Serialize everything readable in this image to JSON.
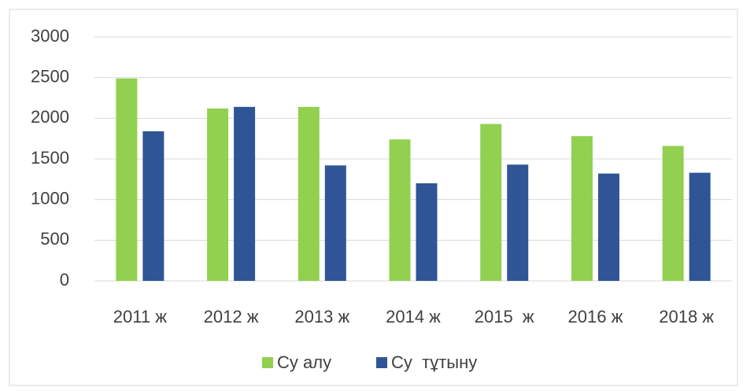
{
  "chart_data": {
    "type": "bar",
    "categories": [
      "2011 ж",
      "2012 ж",
      "2013 ж",
      "2014 ж",
      "2015  ж",
      "2016 ж",
      "2018 ж"
    ],
    "series": [
      {
        "name": "Су алу",
        "color": "#92d050",
        "values": [
          2490,
          2120,
          2140,
          1740,
          1930,
          1780,
          1660
        ]
      },
      {
        "name": "Су  тұтыну",
        "color": "#2f5597",
        "values": [
          1840,
          2140,
          1420,
          1200,
          1430,
          1320,
          1330
        ]
      }
    ],
    "ylim": [
      0,
      3000
    ],
    "yticks": [
      0,
      500,
      1000,
      1500,
      2000,
      2500,
      3000
    ],
    "grid": true,
    "legend": "bottom"
  }
}
